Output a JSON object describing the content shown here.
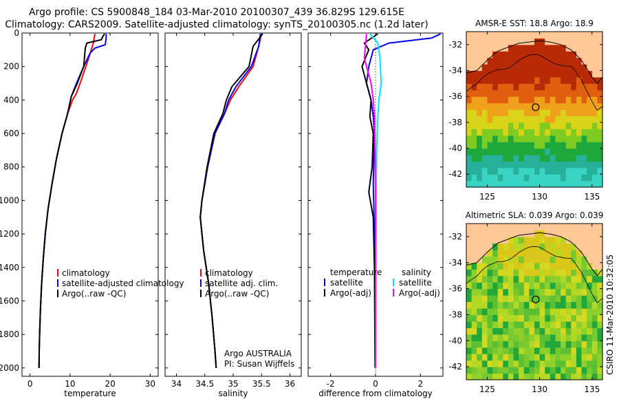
{
  "header": {
    "title_line1": "Argo profile: CS 5900848_184 03-Mar-2010 20100307_439 36.829S 129.615E",
    "title_line2": "Climatology: CARS2009. Satellite-adjusted climatology: synTS_20100305.nc (1.2d later)"
  },
  "credit": "CSIRO 11-Mar-2010 10:32:05",
  "colors": {
    "climatology": "#ff0000",
    "satellite": "#0000ff",
    "argo": "#000000",
    "salinity_satellite": "#00e5ff",
    "salinity_argo": "#ff00ff",
    "land": "#ffc896"
  },
  "chart_data": [
    {
      "id": "temperature",
      "type": "line",
      "xlabel": "temperature",
      "ylabel": "",
      "xlim": [
        -2,
        32
      ],
      "ylim": [
        2050,
        0
      ],
      "xticks": [
        0,
        10,
        20,
        30
      ],
      "yticks": [
        0,
        200,
        400,
        600,
        800,
        1000,
        1200,
        1400,
        1600,
        1800,
        2000
      ],
      "series": [
        {
          "name": "climatology",
          "color": "#ff0000",
          "x": [
            16.2,
            15.8,
            15.3,
            14.5,
            12.8,
            11.6,
            10.6,
            9.4,
            8.0,
            6.6,
            5.5,
            4.5,
            3.8,
            3.3,
            2.9,
            2.6,
            2.4,
            2.3,
            2.3
          ],
          "y": [
            5,
            60,
            100,
            160,
            280,
            360,
            400,
            480,
            600,
            750,
            900,
            1050,
            1200,
            1350,
            1500,
            1650,
            1800,
            1900,
            2000
          ]
        },
        {
          "name": "satellite-adjusted climatology",
          "color": "#0000ff",
          "x": [
            19.0,
            19.0,
            18.8,
            16.2,
            15.0,
            13.4,
            11.6,
            10.3,
            9.4,
            8.0,
            6.6,
            5.5,
            4.5,
            3.8,
            3.3,
            2.9,
            2.6,
            2.4,
            2.3,
            2.3
          ],
          "y": [
            5,
            30,
            70,
            90,
            120,
            200,
            300,
            380,
            480,
            600,
            750,
            900,
            1050,
            1200,
            1350,
            1500,
            1650,
            1800,
            1900,
            2000
          ]
        },
        {
          "name": "Argo(..raw -QC)",
          "color": "#000000",
          "x": [
            18.6,
            18.2,
            17.8,
            14.2,
            13.8,
            13.4,
            11.8,
            10.3,
            9.4,
            8.0,
            6.6,
            5.5,
            4.5,
            3.8,
            3.3,
            2.9,
            2.6,
            2.4,
            2.3,
            2.2
          ],
          "y": [
            5,
            20,
            40,
            60,
            90,
            200,
            300,
            380,
            480,
            600,
            750,
            900,
            1050,
            1200,
            1350,
            1500,
            1650,
            1800,
            1900,
            2000
          ]
        }
      ],
      "legend": {
        "position": "lower-center",
        "labels": [
          "climatology",
          "satellite-adjusted climatology",
          "Argo(..raw -QC)"
        ]
      }
    },
    {
      "id": "salinity",
      "type": "line",
      "xlabel": "salinity",
      "ylabel": "",
      "xlim": [
        33.8,
        36.2
      ],
      "ylim": [
        2050,
        0
      ],
      "xticks": [
        34,
        34.5,
        35,
        35.5,
        36
      ],
      "xticklabels": [
        "34",
        "34.5",
        "35",
        "35.5",
        "36"
      ],
      "series": [
        {
          "name": "climatology",
          "color": "#ff0000",
          "x": [
            35.5,
            35.45,
            35.35,
            35.1,
            34.95,
            34.85,
            34.68,
            34.55,
            34.45,
            34.42,
            34.48,
            34.57,
            34.63,
            34.68,
            34.7
          ],
          "y": [
            5,
            80,
            200,
            320,
            400,
            480,
            600,
            800,
            1000,
            1100,
            1300,
            1500,
            1700,
            1900,
            2000
          ]
        },
        {
          "name": "satellite adj. clim.",
          "color": "#0000ff",
          "x": [
            35.48,
            35.45,
            35.32,
            35.05,
            34.92,
            34.85,
            34.68,
            34.55,
            34.45,
            34.42,
            34.48,
            34.57,
            34.63,
            34.68,
            34.7
          ],
          "y": [
            5,
            80,
            200,
            320,
            400,
            480,
            600,
            800,
            1000,
            1100,
            1300,
            1500,
            1700,
            1900,
            2000
          ]
        },
        {
          "name": "Argo(..raw -QC)",
          "color": "#000000",
          "x": [
            35.52,
            35.35,
            35.28,
            34.98,
            34.88,
            34.82,
            34.66,
            34.54,
            34.45,
            34.42,
            34.48,
            34.57,
            34.63,
            34.68,
            34.7
          ],
          "y": [
            5,
            80,
            200,
            320,
            400,
            480,
            600,
            800,
            1000,
            1100,
            1300,
            1500,
            1700,
            1900,
            2000
          ]
        }
      ],
      "legend": {
        "position": "lower-center",
        "labels": [
          "climatology",
          "satellite adj. clim.",
          "Argo(..raw -QC)"
        ]
      },
      "annotations": [
        "Argo AUSTRALIA",
        "PI: Susan Wijffels"
      ]
    },
    {
      "id": "difference",
      "type": "line",
      "xlabel": "difference from climatology",
      "ylabel": "",
      "xlim": [
        -3,
        3
      ],
      "ylim": [
        2050,
        0
      ],
      "xticks": [
        -2,
        0,
        2
      ],
      "series": [
        {
          "name": "temperature satellite",
          "color": "#0000ff",
          "x": [
            2.9,
            2.5,
            0.6,
            -0.1,
            -0.3,
            -0.4,
            -0.2,
            -0.1,
            -0.05,
            -0.1,
            -0.05,
            0,
            0
          ],
          "y": [
            5,
            30,
            60,
            100,
            200,
            300,
            400,
            500,
            600,
            900,
            1200,
            1500,
            2000
          ]
        },
        {
          "name": "temperature Argo(-adj)",
          "color": "#000000",
          "x": [
            0.1,
            -0.5,
            -0.3,
            -0.6,
            -0.4,
            -0.2,
            -0.25,
            -0.1,
            -0.15,
            -0.3,
            -0.1,
            -0.05,
            -0.02
          ],
          "y": [
            5,
            60,
            100,
            200,
            300,
            400,
            500,
            600,
            800,
            950,
            1100,
            1400,
            2000
          ]
        },
        {
          "name": "salinity satellite",
          "color": "#00e5ff",
          "x": [
            -0.25,
            0.1,
            0.2,
            0.25,
            0.15,
            0.1,
            0.05,
            0.02,
            0
          ],
          "y": [
            5,
            60,
            150,
            300,
            400,
            500,
            700,
            1000,
            2000
          ]
        },
        {
          "name": "salinity Argo(-adj)",
          "color": "#ff00ff",
          "x": [
            -0.4,
            -0.5,
            -0.2,
            -0.1,
            -0.05,
            -0.02,
            0,
            0
          ],
          "y": [
            5,
            150,
            300,
            400,
            500,
            700,
            1000,
            2000
          ]
        }
      ],
      "legend": {
        "position": "lower-center",
        "headers": [
          "temperature",
          "salinity"
        ],
        "labels": [
          "satellite",
          "Argo(-adj)",
          "satellite",
          "Argo(-adj)"
        ]
      }
    },
    {
      "id": "sst-map",
      "type": "heatmap",
      "title": "AMSR-E SST: 18.8 Argo: 18.9",
      "xlim": [
        123,
        136
      ],
      "ylim": [
        -43,
        -31
      ],
      "xticks": [
        125,
        130,
        135
      ],
      "yticks": [
        -32,
        -34,
        -36,
        -38,
        -40,
        -42
      ],
      "marker": {
        "lon": 129.615,
        "lat": -36.829
      }
    },
    {
      "id": "sla-map",
      "type": "heatmap",
      "title": "Altimetric SLA: 0.039 Argo: 0.039",
      "xlim": [
        123,
        136
      ],
      "ylim": [
        -43,
        -31
      ],
      "xticks": [
        125,
        130,
        135
      ],
      "yticks": [
        -32,
        -34,
        -36,
        -38,
        -40,
        -42
      ],
      "marker": {
        "lon": 129.615,
        "lat": -36.829
      }
    }
  ]
}
